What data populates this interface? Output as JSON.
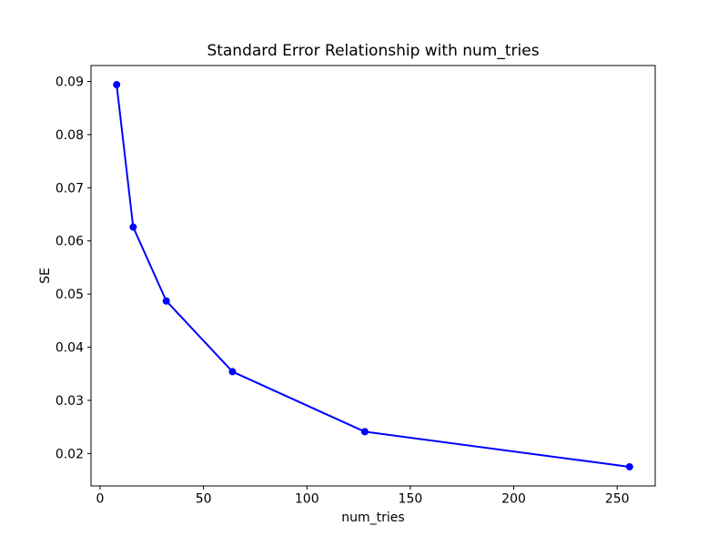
{
  "figure": {
    "background": "#ffffff",
    "foreground": "#000000"
  },
  "chart_data": {
    "type": "line",
    "title": "Standard Error Relationship with num_tries",
    "xlabel": "num_tries",
    "ylabel": "SE",
    "x": [
      8,
      16,
      32,
      64,
      128,
      256
    ],
    "series": [
      {
        "name": "SE",
        "values": [
          0.0894,
          0.0626,
          0.0487,
          0.0354,
          0.0241,
          0.0175
        ]
      }
    ],
    "x_ticks": [
      0,
      50,
      100,
      150,
      200,
      250
    ],
    "y_ticks": [
      0.02,
      0.03,
      0.04,
      0.05,
      0.06,
      0.07,
      0.08,
      0.09
    ],
    "y_tick_decimals": 2,
    "xlim": [
      -4.4,
      268.4
    ],
    "ylim": [
      0.0139,
      0.093
    ],
    "line_color": "#0000ff",
    "marker": "circle",
    "marker_size": 4,
    "line_width": 2,
    "grid": false,
    "legend_position": "none"
  }
}
